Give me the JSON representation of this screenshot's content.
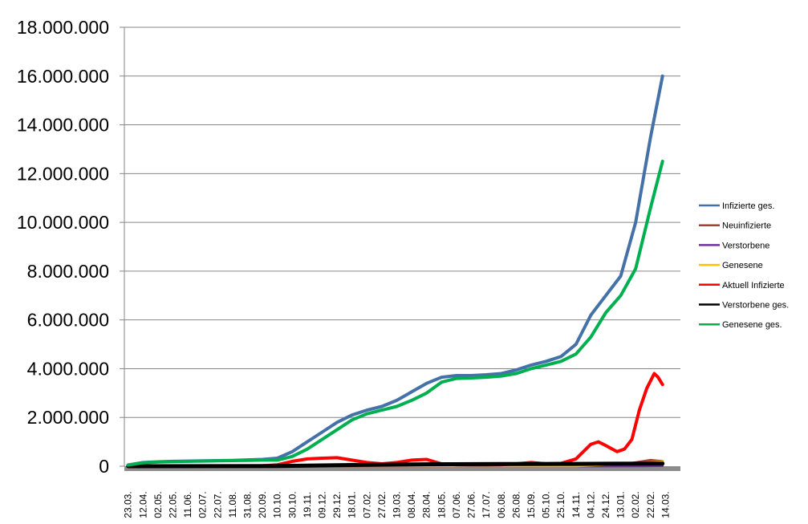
{
  "chart_data": {
    "type": "line",
    "title": "",
    "xlabel": "",
    "ylabel": "",
    "ylim": [
      0,
      18000000
    ],
    "xlim_days": [
      -5,
      740
    ],
    "grid": "horizontal",
    "legend_position": "right",
    "x_tick_labels": [
      "23.03.",
      "12.04.",
      "02.05.",
      "22.05.",
      "11.06.",
      "02.07.",
      "22.07.",
      "11.08.",
      "31.08.",
      "20.09.",
      "10.10.",
      "30.10.",
      "19.11.",
      "09.12.",
      "29.12.",
      "18.01.",
      "07.02.",
      "27.02.",
      "19.03.",
      "08.04.",
      "28.04.",
      "18.05.",
      "07.06.",
      "27.06.",
      "17.07.",
      "06.08.",
      "26.08.",
      "15.09.",
      "05.10.",
      "25.10.",
      "14.11.",
      "04.12.",
      "24.12.",
      "13.01.",
      "02.02.",
      "22.02.",
      "14.03."
    ],
    "x_tick_step_days": 20,
    "y_ticks": [
      0,
      2000000,
      4000000,
      6000000,
      8000000,
      10000000,
      12000000,
      14000000,
      16000000,
      18000000
    ],
    "y_tick_labels": [
      "0",
      "2.000.000",
      "4.000.000",
      "6.000.000",
      "8.000.000",
      "10.000.000",
      "12.000.000",
      "14.000.000",
      "16.000.000",
      "18.000.000"
    ],
    "series": [
      {
        "name": "Infizierte ges.",
        "color": "#4472a8",
        "width": 4,
        "points": [
          [
            0,
            50000
          ],
          [
            20,
            150000
          ],
          [
            40,
            180000
          ],
          [
            60,
            200000
          ],
          [
            80,
            210000
          ],
          [
            100,
            220000
          ],
          [
            120,
            230000
          ],
          [
            140,
            240000
          ],
          [
            160,
            260000
          ],
          [
            180,
            280000
          ],
          [
            200,
            330000
          ],
          [
            220,
            600000
          ],
          [
            240,
            1000000
          ],
          [
            260,
            1400000
          ],
          [
            280,
            1800000
          ],
          [
            300,
            2100000
          ],
          [
            320,
            2300000
          ],
          [
            340,
            2450000
          ],
          [
            360,
            2700000
          ],
          [
            380,
            3050000
          ],
          [
            400,
            3400000
          ],
          [
            420,
            3650000
          ],
          [
            440,
            3720000
          ],
          [
            460,
            3720000
          ],
          [
            480,
            3750000
          ],
          [
            500,
            3800000
          ],
          [
            520,
            3950000
          ],
          [
            540,
            4150000
          ],
          [
            560,
            4300000
          ],
          [
            580,
            4500000
          ],
          [
            600,
            5000000
          ],
          [
            620,
            6200000
          ],
          [
            640,
            7000000
          ],
          [
            660,
            7800000
          ],
          [
            680,
            10000000
          ],
          [
            700,
            13500000
          ],
          [
            716,
            16000000
          ]
        ]
      },
      {
        "name": "Neuinfizierte",
        "color": "#a0413c",
        "width": 3,
        "points": [
          [
            0,
            5000
          ],
          [
            200,
            10000
          ],
          [
            400,
            15000
          ],
          [
            600,
            15000
          ],
          [
            650,
            20000
          ],
          [
            680,
            150000
          ],
          [
            700,
            250000
          ],
          [
            716,
            200000
          ]
        ]
      },
      {
        "name": "Verstorbene",
        "color": "#7030a0",
        "width": 3,
        "points": [
          [
            0,
            0
          ],
          [
            600,
            0
          ],
          [
            690,
            10000
          ],
          [
            716,
            20000
          ]
        ]
      },
      {
        "name": "Genesene",
        "color": "#ffc000",
        "width": 3,
        "points": [
          [
            0,
            5000
          ],
          [
            600,
            10000
          ],
          [
            650,
            80000
          ],
          [
            700,
            150000
          ],
          [
            716,
            180000
          ]
        ]
      },
      {
        "name": "Aktuell Infizierte",
        "color": "#ff0000",
        "width": 4,
        "points": [
          [
            0,
            0
          ],
          [
            180,
            20000
          ],
          [
            200,
            60000
          ],
          [
            220,
            200000
          ],
          [
            240,
            300000
          ],
          [
            260,
            330000
          ],
          [
            280,
            350000
          ],
          [
            300,
            250000
          ],
          [
            320,
            150000
          ],
          [
            340,
            100000
          ],
          [
            360,
            150000
          ],
          [
            380,
            250000
          ],
          [
            400,
            280000
          ],
          [
            420,
            100000
          ],
          [
            440,
            60000
          ],
          [
            460,
            50000
          ],
          [
            480,
            50000
          ],
          [
            500,
            60000
          ],
          [
            520,
            100000
          ],
          [
            540,
            150000
          ],
          [
            560,
            100000
          ],
          [
            580,
            120000
          ],
          [
            600,
            300000
          ],
          [
            620,
            900000
          ],
          [
            630,
            1000000
          ],
          [
            640,
            850000
          ],
          [
            655,
            600000
          ],
          [
            665,
            700000
          ],
          [
            675,
            1100000
          ],
          [
            685,
            2300000
          ],
          [
            695,
            3200000
          ],
          [
            705,
            3800000
          ],
          [
            710,
            3650000
          ],
          [
            716,
            3350000
          ]
        ]
      },
      {
        "name": "Verstorbene ges.",
        "color": "#000000",
        "width": 5,
        "points": [
          [
            0,
            0
          ],
          [
            200,
            10000
          ],
          [
            300,
            50000
          ],
          [
            400,
            80000
          ],
          [
            500,
            90000
          ],
          [
            600,
            95000
          ],
          [
            716,
            110000
          ]
        ]
      },
      {
        "name": "Genesene ges.",
        "color": "#00b050",
        "width": 4,
        "points": [
          [
            0,
            50000
          ],
          [
            20,
            140000
          ],
          [
            40,
            170000
          ],
          [
            60,
            190000
          ],
          [
            80,
            200000
          ],
          [
            100,
            210000
          ],
          [
            120,
            220000
          ],
          [
            140,
            230000
          ],
          [
            160,
            240000
          ],
          [
            180,
            250000
          ],
          [
            200,
            250000
          ],
          [
            220,
            400000
          ],
          [
            240,
            700000
          ],
          [
            260,
            1100000
          ],
          [
            280,
            1500000
          ],
          [
            300,
            1900000
          ],
          [
            320,
            2150000
          ],
          [
            340,
            2300000
          ],
          [
            360,
            2450000
          ],
          [
            380,
            2700000
          ],
          [
            400,
            3000000
          ],
          [
            420,
            3450000
          ],
          [
            440,
            3600000
          ],
          [
            460,
            3620000
          ],
          [
            480,
            3650000
          ],
          [
            500,
            3700000
          ],
          [
            520,
            3800000
          ],
          [
            540,
            4000000
          ],
          [
            560,
            4150000
          ],
          [
            580,
            4300000
          ],
          [
            600,
            4600000
          ],
          [
            620,
            5300000
          ],
          [
            640,
            6300000
          ],
          [
            660,
            7000000
          ],
          [
            680,
            8100000
          ],
          [
            700,
            10600000
          ],
          [
            716,
            12500000
          ]
        ]
      }
    ]
  }
}
